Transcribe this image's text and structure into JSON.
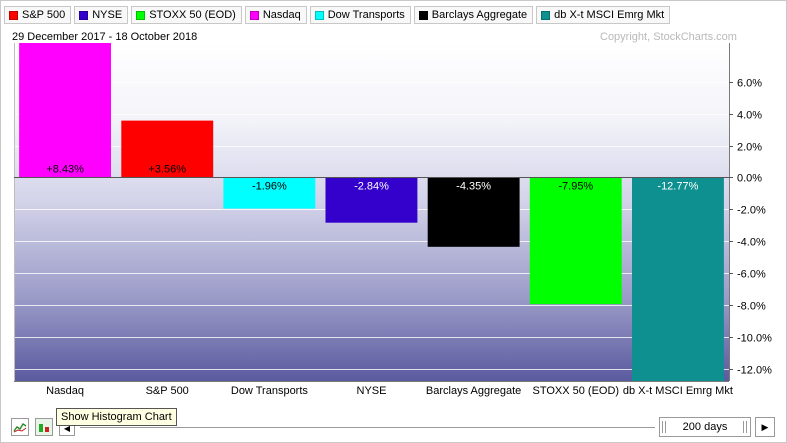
{
  "legend": [
    {
      "label": "S&P 500",
      "color": "#ff0000"
    },
    {
      "label": "NYSE",
      "color": "#3300cc"
    },
    {
      "label": "STOXX 50 (EOD)",
      "color": "#00ff00"
    },
    {
      "label": "Nasdaq",
      "color": "#ff00ff"
    },
    {
      "label": "Dow Transports",
      "color": "#00ffff"
    },
    {
      "label": "Barclays Aggregate",
      "color": "#000000"
    },
    {
      "label": "db X-t MSCI Emrg Mkt",
      "color": "#0f9090"
    }
  ],
  "header": {
    "date_range": "29 December 2017 - 18 October 2018",
    "copyright": "Copyright, StockCharts.com"
  },
  "chart_data": {
    "type": "bar",
    "categories": [
      "Nasdaq",
      "S&P 500",
      "Dow Transports",
      "NYSE",
      "Barclays Aggregate",
      "STOXX 50 (EOD)",
      "db X-t MSCI Emrg Mkt"
    ],
    "values": [
      8.43,
      3.56,
      -1.96,
      -2.84,
      -4.35,
      -7.95,
      -12.77
    ],
    "data_labels": [
      "+8.43%",
      "+3.56%",
      "-1.96%",
      "-2.84%",
      "-4.35%",
      "-7.95%",
      "-12.77%"
    ],
    "colors": [
      "#ff00ff",
      "#ff0000",
      "#00ffff",
      "#3300cc",
      "#000000",
      "#00ff00",
      "#0f9090"
    ],
    "label_colors": [
      "#000000",
      "#000000",
      "#000000",
      "#ffffff",
      "#ffffff",
      "#000000",
      "#ffffff"
    ],
    "yticks": [
      6,
      4,
      2,
      0,
      -2,
      -4,
      -6,
      -8,
      -10,
      -12
    ],
    "ytick_labels": [
      "6.0%",
      "4.0%",
      "2.0%",
      "0.0%",
      "-2.0%",
      "-4.0%",
      "-6.0%",
      "-8.0%",
      "-10.0%",
      "-12.0%"
    ],
    "ylim": [
      -12.77,
      8.43
    ],
    "grid": true,
    "title": "",
    "xlabel": "",
    "ylabel": ""
  },
  "controls": {
    "tooltip": "Show Histogram Chart",
    "period": "200 days",
    "play_glyph": "▶",
    "prev_glyph": "◀",
    "line_chart_icon": "line-chart-icon",
    "histogram_icon": "histogram-icon"
  }
}
